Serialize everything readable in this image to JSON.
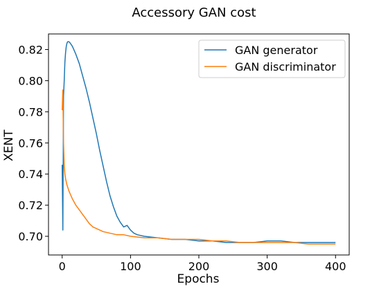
{
  "chart_data": {
    "type": "line",
    "title": "Accessory GAN cost",
    "xlabel": "Epochs",
    "ylabel": "XENT",
    "xlim": [
      -20,
      420
    ],
    "ylim": [
      0.688,
      0.83
    ],
    "xticks": [
      0,
      100,
      200,
      300,
      400
    ],
    "yticks": [
      0.7,
      0.72,
      0.74,
      0.76,
      0.78,
      0.8,
      0.82
    ],
    "xtick_labels": [
      "0",
      "100",
      "200",
      "300",
      "400"
    ],
    "ytick_labels": [
      "0.70",
      "0.72",
      "0.74",
      "0.76",
      "0.78",
      "0.80",
      "0.82"
    ],
    "legend_position": "top-right",
    "grid": false,
    "series": [
      {
        "name": "GAN generator",
        "color": "#1f77b4",
        "points": [
          [
            0,
            0.746
          ],
          [
            1,
            0.704
          ],
          [
            2,
            0.79
          ],
          [
            3,
            0.8
          ],
          [
            4,
            0.812
          ],
          [
            5,
            0.818
          ],
          [
            6,
            0.822
          ],
          [
            7,
            0.824
          ],
          [
            8,
            0.825
          ],
          [
            10,
            0.825
          ],
          [
            12,
            0.824
          ],
          [
            15,
            0.822
          ],
          [
            20,
            0.817
          ],
          [
            25,
            0.811
          ],
          [
            30,
            0.803
          ],
          [
            35,
            0.795
          ],
          [
            40,
            0.786
          ],
          [
            45,
            0.776
          ],
          [
            50,
            0.766
          ],
          [
            55,
            0.755
          ],
          [
            60,
            0.745
          ],
          [
            65,
            0.735
          ],
          [
            70,
            0.726
          ],
          [
            75,
            0.719
          ],
          [
            80,
            0.713
          ],
          [
            85,
            0.709
          ],
          [
            90,
            0.706
          ],
          [
            95,
            0.707
          ],
          [
            100,
            0.704
          ],
          [
            105,
            0.702
          ],
          [
            110,
            0.701
          ],
          [
            120,
            0.7
          ],
          [
            140,
            0.699
          ],
          [
            160,
            0.698
          ],
          [
            180,
            0.698
          ],
          [
            200,
            0.697
          ],
          [
            220,
            0.697
          ],
          [
            240,
            0.696
          ],
          [
            260,
            0.696
          ],
          [
            280,
            0.696
          ],
          [
            300,
            0.697
          ],
          [
            320,
            0.697
          ],
          [
            340,
            0.696
          ],
          [
            360,
            0.696
          ],
          [
            380,
            0.696
          ],
          [
            400,
            0.696
          ]
        ]
      },
      {
        "name": "GAN discriminator",
        "color": "#ff7f0e",
        "points": [
          [
            0,
            0.781
          ],
          [
            1,
            0.794
          ],
          [
            2,
            0.76
          ],
          [
            3,
            0.745
          ],
          [
            4,
            0.74
          ],
          [
            5,
            0.737
          ],
          [
            7,
            0.733
          ],
          [
            10,
            0.729
          ],
          [
            15,
            0.724
          ],
          [
            20,
            0.72
          ],
          [
            25,
            0.717
          ],
          [
            30,
            0.714
          ],
          [
            35,
            0.711
          ],
          [
            40,
            0.708
          ],
          [
            45,
            0.706
          ],
          [
            50,
            0.705
          ],
          [
            60,
            0.703
          ],
          [
            70,
            0.702
          ],
          [
            80,
            0.701
          ],
          [
            90,
            0.701
          ],
          [
            100,
            0.7
          ],
          [
            120,
            0.699
          ],
          [
            140,
            0.699
          ],
          [
            160,
            0.698
          ],
          [
            180,
            0.698
          ],
          [
            200,
            0.698
          ],
          [
            220,
            0.697
          ],
          [
            240,
            0.697
          ],
          [
            260,
            0.696
          ],
          [
            280,
            0.696
          ],
          [
            300,
            0.696
          ],
          [
            320,
            0.696
          ],
          [
            340,
            0.696
          ],
          [
            360,
            0.695
          ],
          [
            380,
            0.695
          ],
          [
            400,
            0.695
          ]
        ]
      }
    ]
  }
}
